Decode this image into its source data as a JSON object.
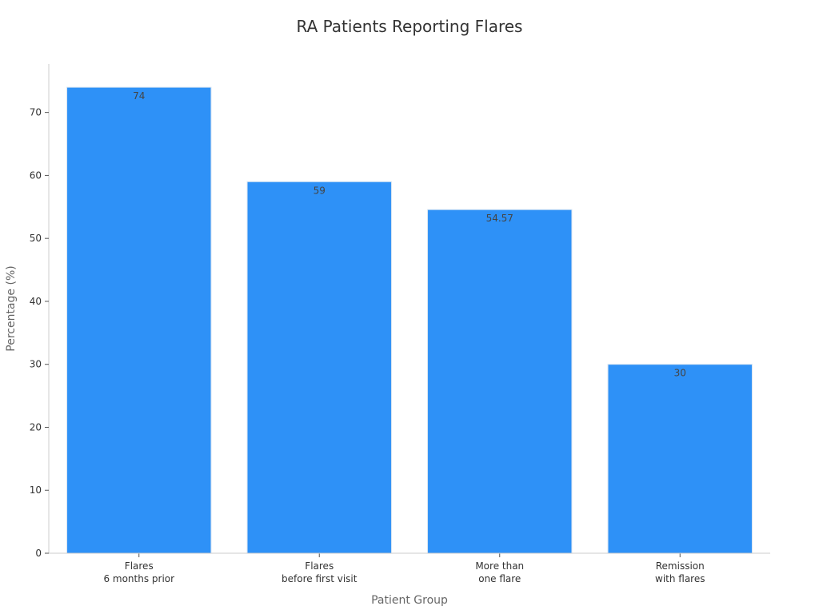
{
  "chart_data": {
    "type": "bar",
    "title": "RA Patients Reporting Flares",
    "xlabel": "Patient Group",
    "ylabel": "Percentage (%)",
    "categories": [
      [
        "Flares",
        "6 months prior"
      ],
      [
        "Flares",
        "before first visit"
      ],
      [
        "More than",
        "one flare"
      ],
      [
        "Remission",
        "with flares"
      ]
    ],
    "values": [
      74,
      59,
      54.57,
      30
    ],
    "value_labels": [
      "74",
      "59",
      "54.57",
      "30"
    ],
    "ylim": [
      0,
      77.7
    ],
    "yticks": [
      0,
      10,
      20,
      30,
      40,
      50,
      60,
      70
    ],
    "grid": false,
    "legend": "none",
    "colors": {
      "bar": "#2e91f7",
      "bar_edge": "#d6e4f2",
      "axis": "#cccccc"
    }
  }
}
